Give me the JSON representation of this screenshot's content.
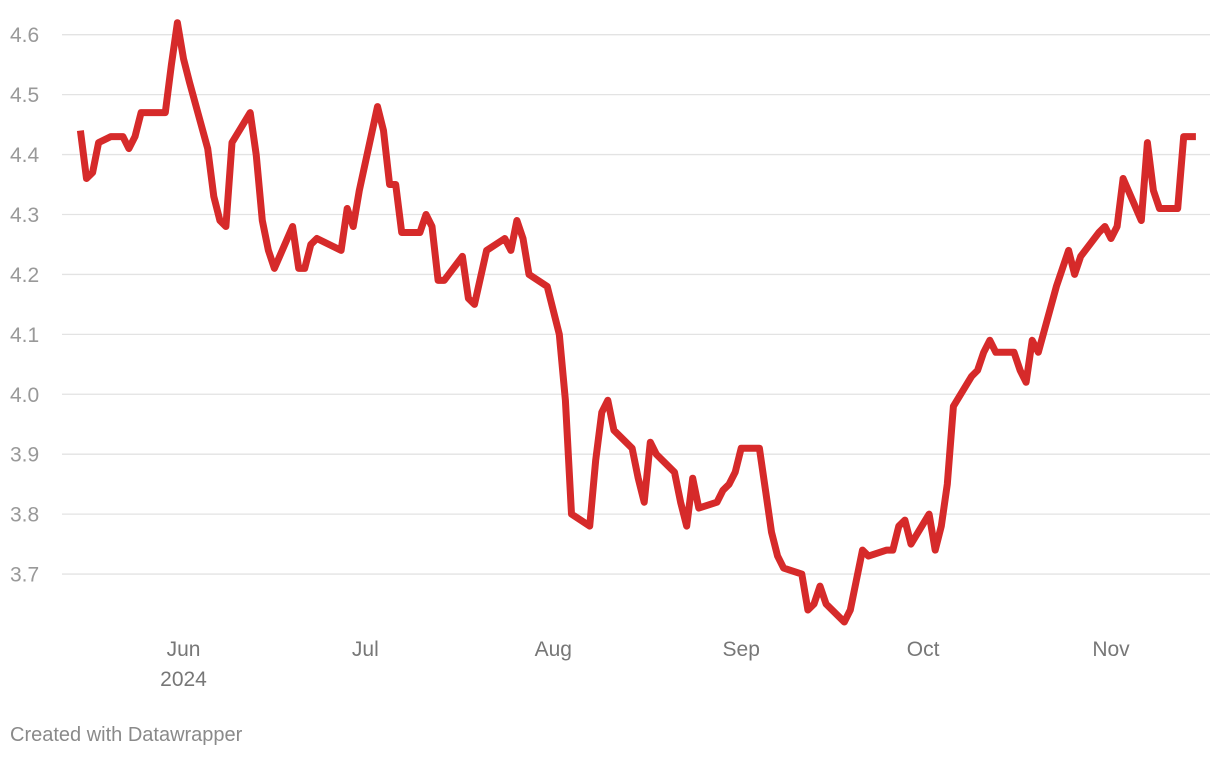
{
  "chart_data": {
    "type": "line",
    "title": "",
    "xlabel": "",
    "ylabel": "",
    "ylim": [
      3.6,
      4.62
    ],
    "y_ticks": [
      "3.7",
      "3.8",
      "3.9",
      "4.0",
      "4.1",
      "4.2",
      "4.3",
      "4.4",
      "4.5",
      "4.6"
    ],
    "x_ticks": [
      {
        "label": "Jun",
        "sublabel": "2024",
        "date": "2024-06-01"
      },
      {
        "label": "Jul",
        "sublabel": "",
        "date": "2024-07-01"
      },
      {
        "label": "Aug",
        "sublabel": "",
        "date": "2024-08-01"
      },
      {
        "label": "Sep",
        "sublabel": "",
        "date": "2024-09-01"
      },
      {
        "label": "Oct",
        "sublabel": "",
        "date": "2024-10-01"
      },
      {
        "label": "Nov",
        "sublabel": "",
        "date": "2024-11-01"
      }
    ],
    "xlim": [
      "2024-05-13",
      "2024-11-23"
    ],
    "grid": true,
    "legend": "none",
    "line_color": "#d62a2a",
    "series": [
      {
        "values": [
          [
            "2024-05-15",
            4.44
          ],
          [
            "2024-05-16",
            4.36
          ],
          [
            "2024-05-17",
            4.37
          ],
          [
            "2024-05-18",
            4.42
          ],
          [
            "2024-05-20",
            4.43
          ],
          [
            "2024-05-22",
            4.43
          ],
          [
            "2024-05-23",
            4.41
          ],
          [
            "2024-05-24",
            4.43
          ],
          [
            "2024-05-25",
            4.47
          ],
          [
            "2024-05-28",
            4.47
          ],
          [
            "2024-05-29",
            4.47
          ],
          [
            "2024-05-30",
            4.55
          ],
          [
            "2024-05-31",
            4.62
          ],
          [
            "2024-06-01",
            4.56
          ],
          [
            "2024-06-02",
            4.52
          ],
          [
            "2024-06-05",
            4.41
          ],
          [
            "2024-06-06",
            4.33
          ],
          [
            "2024-06-07",
            4.29
          ],
          [
            "2024-06-08",
            4.28
          ],
          [
            "2024-06-09",
            4.42
          ],
          [
            "2024-06-12",
            4.47
          ],
          [
            "2024-06-13",
            4.4
          ],
          [
            "2024-06-14",
            4.29
          ],
          [
            "2024-06-15",
            4.24
          ],
          [
            "2024-06-16",
            4.21
          ],
          [
            "2024-06-19",
            4.28
          ],
          [
            "2024-06-20",
            4.21
          ],
          [
            "2024-06-21",
            4.21
          ],
          [
            "2024-06-22",
            4.25
          ],
          [
            "2024-06-23",
            4.26
          ],
          [
            "2024-06-27",
            4.24
          ],
          [
            "2024-06-28",
            4.31
          ],
          [
            "2024-06-29",
            4.28
          ],
          [
            "2024-06-30",
            4.34
          ],
          [
            "2024-07-03",
            4.48
          ],
          [
            "2024-07-04",
            4.44
          ],
          [
            "2024-07-05",
            4.35
          ],
          [
            "2024-07-06",
            4.35
          ],
          [
            "2024-07-07",
            4.27
          ],
          [
            "2024-07-10",
            4.27
          ],
          [
            "2024-07-11",
            4.3
          ],
          [
            "2024-07-12",
            4.28
          ],
          [
            "2024-07-13",
            4.19
          ],
          [
            "2024-07-14",
            4.19
          ],
          [
            "2024-07-17",
            4.23
          ],
          [
            "2024-07-18",
            4.16
          ],
          [
            "2024-07-19",
            4.15
          ],
          [
            "2024-07-21",
            4.24
          ],
          [
            "2024-07-24",
            4.26
          ],
          [
            "2024-07-25",
            4.24
          ],
          [
            "2024-07-26",
            4.29
          ],
          [
            "2024-07-27",
            4.26
          ],
          [
            "2024-07-28",
            4.2
          ],
          [
            "2024-07-31",
            4.18
          ],
          [
            "2024-08-02",
            4.1
          ],
          [
            "2024-08-03",
            3.99
          ],
          [
            "2024-08-04",
            3.8
          ],
          [
            "2024-08-07",
            3.78
          ],
          [
            "2024-08-08",
            3.89
          ],
          [
            "2024-08-09",
            3.97
          ],
          [
            "2024-08-10",
            3.99
          ],
          [
            "2024-08-11",
            3.94
          ],
          [
            "2024-08-14",
            3.91
          ],
          [
            "2024-08-15",
            3.86
          ],
          [
            "2024-08-16",
            3.82
          ],
          [
            "2024-08-17",
            3.92
          ],
          [
            "2024-08-18",
            3.9
          ],
          [
            "2024-08-21",
            3.87
          ],
          [
            "2024-08-22",
            3.82
          ],
          [
            "2024-08-23",
            3.78
          ],
          [
            "2024-08-24",
            3.86
          ],
          [
            "2024-08-25",
            3.81
          ],
          [
            "2024-08-28",
            3.82
          ],
          [
            "2024-08-29",
            3.84
          ],
          [
            "2024-08-30",
            3.85
          ],
          [
            "2024-08-31",
            3.87
          ],
          [
            "2024-09-01",
            3.91
          ],
          [
            "2024-09-04",
            3.91
          ],
          [
            "2024-09-05",
            3.84
          ],
          [
            "2024-09-06",
            3.77
          ],
          [
            "2024-09-07",
            3.73
          ],
          [
            "2024-09-08",
            3.71
          ],
          [
            "2024-09-11",
            3.7
          ],
          [
            "2024-09-12",
            3.64
          ],
          [
            "2024-09-13",
            3.65
          ],
          [
            "2024-09-14",
            3.68
          ],
          [
            "2024-09-15",
            3.65
          ],
          [
            "2024-09-18",
            3.62
          ],
          [
            "2024-09-19",
            3.64
          ],
          [
            "2024-09-20",
            3.69
          ],
          [
            "2024-09-21",
            3.74
          ],
          [
            "2024-09-22",
            3.73
          ],
          [
            "2024-09-25",
            3.74
          ],
          [
            "2024-09-26",
            3.74
          ],
          [
            "2024-09-27",
            3.78
          ],
          [
            "2024-09-28",
            3.79
          ],
          [
            "2024-09-29",
            3.75
          ],
          [
            "2024-10-02",
            3.8
          ],
          [
            "2024-10-03",
            3.74
          ],
          [
            "2024-10-04",
            3.78
          ],
          [
            "2024-10-05",
            3.85
          ],
          [
            "2024-10-06",
            3.98
          ],
          [
            "2024-10-09",
            4.03
          ],
          [
            "2024-10-10",
            4.04
          ],
          [
            "2024-10-11",
            4.07
          ],
          [
            "2024-10-12",
            4.09
          ],
          [
            "2024-10-13",
            4.07
          ],
          [
            "2024-10-16",
            4.07
          ],
          [
            "2024-10-17",
            4.04
          ],
          [
            "2024-10-18",
            4.02
          ],
          [
            "2024-10-19",
            4.09
          ],
          [
            "2024-10-20",
            4.07
          ],
          [
            "2024-10-23",
            4.18
          ],
          [
            "2024-10-24",
            4.21
          ],
          [
            "2024-10-25",
            4.24
          ],
          [
            "2024-10-26",
            4.2
          ],
          [
            "2024-10-27",
            4.23
          ],
          [
            "2024-10-30",
            4.27
          ],
          [
            "2024-10-31",
            4.28
          ],
          [
            "2024-11-01",
            4.26
          ],
          [
            "2024-11-02",
            4.28
          ],
          [
            "2024-11-03",
            4.36
          ],
          [
            "2024-11-06",
            4.29
          ],
          [
            "2024-11-07",
            4.42
          ],
          [
            "2024-11-08",
            4.34
          ],
          [
            "2024-11-09",
            4.31
          ],
          [
            "2024-11-12",
            4.31
          ],
          [
            "2024-11-13",
            4.43
          ],
          [
            "2024-11-15",
            4.43
          ]
        ]
      }
    ]
  },
  "footer": {
    "credit": "Created with Datawrapper"
  }
}
